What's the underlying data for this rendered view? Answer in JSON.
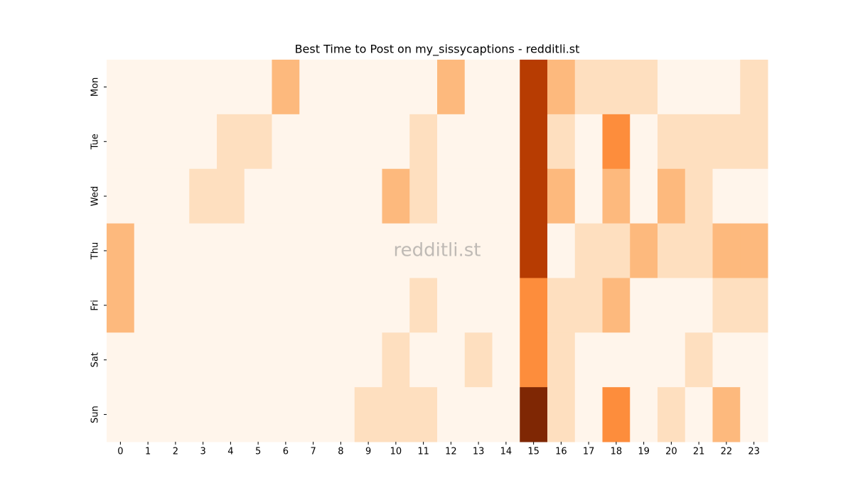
{
  "chart_data": {
    "type": "heatmap",
    "title": "Best Time to Post on my_sissycaptions - redditli.st",
    "watermark": "redditli.st",
    "x": [
      0,
      1,
      2,
      3,
      4,
      5,
      6,
      7,
      8,
      9,
      10,
      11,
      12,
      13,
      14,
      15,
      16,
      17,
      18,
      19,
      20,
      21,
      22,
      23
    ],
    "y": [
      "Mon",
      "Tue",
      "Wed",
      "Thu",
      "Fri",
      "Sat",
      "Sun"
    ],
    "values": [
      [
        0,
        0,
        0,
        0,
        0,
        0,
        2,
        0,
        0,
        0,
        0,
        0,
        2,
        0,
        0,
        5,
        2,
        1,
        1,
        1,
        0,
        0,
        0,
        1
      ],
      [
        0,
        0,
        0,
        0,
        1,
        1,
        0,
        0,
        0,
        0,
        0,
        1,
        0,
        0,
        0,
        5,
        1,
        0,
        3,
        0,
        1,
        1,
        1,
        1
      ],
      [
        0,
        0,
        0,
        1,
        1,
        0,
        0,
        0,
        0,
        0,
        2,
        1,
        0,
        0,
        0,
        5,
        2,
        0,
        2,
        0,
        2,
        1,
        0,
        0
      ],
      [
        2,
        0,
        0,
        0,
        0,
        0,
        0,
        0,
        0,
        0,
        0,
        0,
        0,
        0,
        0,
        5,
        0,
        1,
        1,
        2,
        1,
        1,
        2,
        2
      ],
      [
        2,
        0,
        0,
        0,
        0,
        0,
        0,
        0,
        0,
        0,
        0,
        1,
        0,
        0,
        0,
        3,
        1,
        1,
        2,
        0,
        0,
        0,
        1,
        1
      ],
      [
        0,
        0,
        0,
        0,
        0,
        0,
        0,
        0,
        0,
        0,
        1,
        0,
        0,
        1,
        0,
        3,
        1,
        0,
        0,
        0,
        0,
        1,
        0,
        0
      ],
      [
        0,
        0,
        0,
        0,
        0,
        0,
        0,
        0,
        0,
        1,
        1,
        1,
        0,
        0,
        0,
        6,
        1,
        0,
        3,
        0,
        1,
        0,
        2,
        0
      ]
    ],
    "vlim": [
      0,
      6
    ],
    "colormap": [
      "#fff5eb",
      "#fee6ce",
      "#fdd0a2",
      "#fdae6b",
      "#fd8d3c",
      "#f16913",
      "#d94801",
      "#a63603",
      "#7f2704"
    ]
  }
}
